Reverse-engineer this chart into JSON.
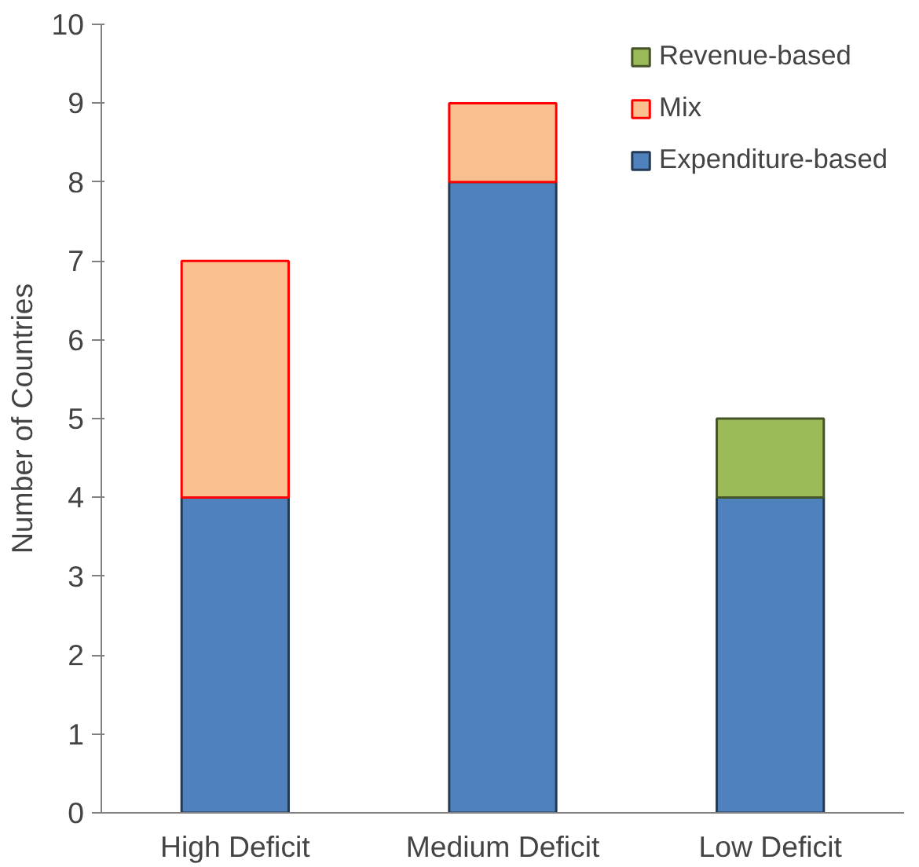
{
  "chart_data": {
    "type": "bar",
    "stacked": true,
    "ylabel": "Number of Countries",
    "categories": [
      "High Deficit",
      "Medium Deficit",
      "Low Deficit"
    ],
    "series": [
      {
        "name": "Expenditure-based",
        "color": "#4f81bd",
        "values": [
          4,
          8,
          4
        ]
      },
      {
        "name": "Mix",
        "color": "#fac090",
        "values": [
          3,
          1,
          0
        ]
      },
      {
        "name": "Revenue-based",
        "color": "#9bbb59",
        "values": [
          0,
          0,
          1
        ]
      }
    ],
    "ylim": [
      0,
      10
    ],
    "yticks": [
      0,
      1,
      2,
      3,
      4,
      5,
      6,
      7,
      8,
      9,
      10
    ],
    "grid": false,
    "legend": "top right"
  }
}
